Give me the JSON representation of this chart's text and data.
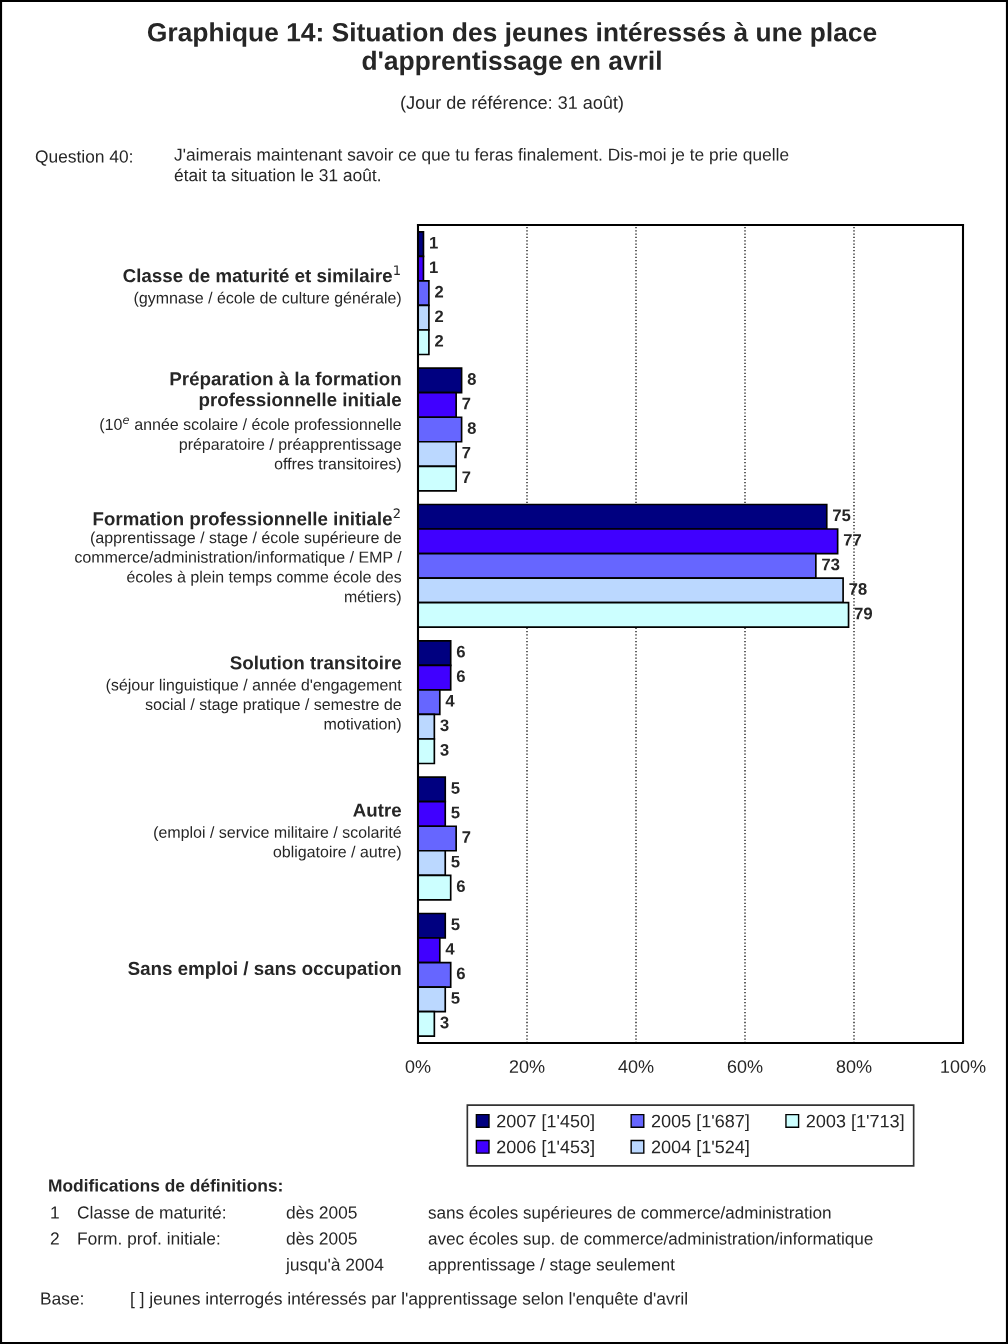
{
  "chart_data": {
    "type": "bar",
    "orientation": "horizontal",
    "title": "Graphique 14: Situation des jeunes intéressés à une place\nd'apprentissage en avril",
    "subtitle": "(Jour de référence: 31 août)",
    "categories": [
      "Classe de maturité et similaire$^{1}$\n(gymnase / école de culture générale)",
      "Préparation à la formation\nprofessionnelle initiale\n(10$^{e}$ année scolaire / école professionnelle\npréparatoire / préapprentissage\noffres transitoires)",
      "Formation professionnelle initiale$^{2}$\n(apprentissage / stage / école supérieure de\ncommerce/administration/informatique / EMP /\nécoles à plein temps comme école des\nmétiers)",
      "Solution transitoire\n(séjour linguistique / année d'engagement\nsocial / stage pratique / semestre de\nmotivation)",
      "Autre\n(emploi / service militaire / scolarité\nobligatoire / autre)",
      "Sans emploi / sans occupation"
    ],
    "series": [
      {
        "name": "2007 [1'450]",
        "color": "#000080",
        "values": [
          1,
          8,
          75,
          6,
          5,
          5
        ]
      },
      {
        "name": "2006 [1'453]",
        "color": "#4000ff",
        "values": [
          1,
          7,
          77,
          6,
          5,
          4
        ]
      },
      {
        "name": "2005 [1'687]",
        "color": "#6666ff",
        "values": [
          2,
          8,
          73,
          4,
          7,
          6
        ]
      },
      {
        "name": "2004 [1'524]",
        "color": "#bbd8ff",
        "values": [
          2,
          7,
          78,
          3,
          5,
          5
        ]
      },
      {
        "name": "2003 [1'713]",
        "color": "#ccffff",
        "values": [
          2,
          7,
          79,
          3,
          6,
          3
        ]
      }
    ],
    "xlim": [
      0,
      100
    ],
    "xticks": [
      {
        "value": 0,
        "label": "0%"
      },
      {
        "value": 20,
        "label": "20%"
      },
      {
        "value": 40,
        "label": "40%"
      },
      {
        "value": 60,
        "label": "60%"
      },
      {
        "value": 80,
        "label": "80%"
      },
      {
        "value": 100,
        "label": "100%"
      }
    ],
    "grid": "x",
    "line_style": "dotted",
    "legend": "bottom",
    "data_labels": true,
    "annotations": [
      "Question 40:",
      "J'aimerais maintenant savoir ce que tu feras finalement. Dis-moi je te prie quelle\nétait ta situation le 31 août.",
      "Modifications de définitions:",
      "1",
      "Classe de maturité:",
      "dès 2005",
      "sans écoles supérieures de commerce/administration",
      "2",
      "Form. prof. initiale:",
      "dès 2005",
      "avec écoles sup. de commerce/administration/informatique",
      "jusqu'à 2004",
      "apprentissage / stage seulement",
      "Base:",
      "[ ] jeunes interrogés intéressés par l'apprentissage selon l'enquête d'avril"
    ]
  }
}
